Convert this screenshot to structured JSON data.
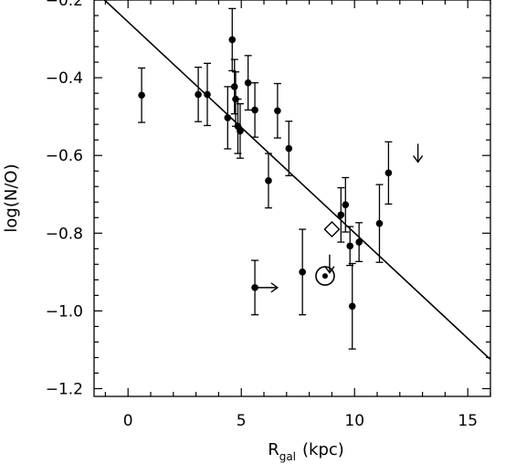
{
  "chart_data": {
    "type": "scatter",
    "title": "",
    "xlabel": {
      "main": "R",
      "sub": "gal",
      "unit": "(kpc)"
    },
    "ylabel": "log(N/O)",
    "xlim": [
      -1.5,
      16
    ],
    "ylim": [
      -1.22,
      -0.2
    ],
    "x_ticks": [
      0,
      5,
      10,
      15
    ],
    "x_tick_labels": [
      "0",
      "5",
      "10",
      "15"
    ],
    "y_ticks": [
      -1.2,
      -1.0,
      -0.8,
      -0.6,
      -0.4,
      -0.2
    ],
    "y_tick_labels": [
      "−1.2",
      "−1.0",
      "−0.8",
      "−0.6",
      "−0.4",
      "−0.2"
    ],
    "grid": false,
    "legend": "none",
    "points": [
      {
        "x": 0.6,
        "y": -0.445,
        "err_lo": 0.07,
        "err_hi": 0.07
      },
      {
        "x": 3.1,
        "y": -0.443,
        "err_lo": 0.07,
        "err_hi": 0.07
      },
      {
        "x": 3.5,
        "y": -0.443,
        "err_lo": 0.08,
        "err_hi": 0.08
      },
      {
        "x": 4.4,
        "y": -0.503,
        "err_lo": 0.08,
        "err_hi": 0.08
      },
      {
        "x": 4.6,
        "y": -0.302,
        "err_lo": 0.08,
        "err_hi": 0.08
      },
      {
        "x": 4.7,
        "y": -0.423,
        "err_lo": 0.07,
        "err_hi": 0.07
      },
      {
        "x": 4.75,
        "y": -0.455,
        "err_lo": 0.07,
        "err_hi": 0.07
      },
      {
        "x": 4.85,
        "y": -0.525,
        "err_lo": 0.07,
        "err_hi": 0.07
      },
      {
        "x": 4.95,
        "y": -0.537,
        "err_lo": 0.07,
        "err_hi": 0.07
      },
      {
        "x": 5.3,
        "y": -0.413,
        "err_lo": 0.07,
        "err_hi": 0.07
      },
      {
        "x": 5.6,
        "y": -0.483,
        "err_lo": 0.07,
        "err_hi": 0.07
      },
      {
        "x": 6.2,
        "y": -0.665,
        "err_lo": 0.07,
        "err_hi": 0.07
      },
      {
        "x": 6.6,
        "y": -0.485,
        "err_lo": 0.07,
        "err_hi": 0.07
      },
      {
        "x": 7.1,
        "y": -0.582,
        "err_lo": 0.07,
        "err_hi": 0.07
      },
      {
        "x": 5.6,
        "y": -0.94,
        "err_lo": 0.07,
        "err_hi": 0.07
      },
      {
        "x": 7.7,
        "y": -0.9,
        "err_lo": 0.11,
        "err_hi": 0.11
      },
      {
        "x": 9.4,
        "y": -0.753,
        "err_lo": 0.07,
        "err_hi": 0.07
      },
      {
        "x": 9.6,
        "y": -0.727,
        "err_lo": 0.07,
        "err_hi": 0.07
      },
      {
        "x": 9.8,
        "y": -0.833,
        "err_lo": 0.05,
        "err_hi": 0.05
      },
      {
        "x": 9.9,
        "y": -0.988,
        "err_lo": 0.11,
        "err_hi": 0.11
      },
      {
        "x": 10.2,
        "y": -0.823,
        "err_lo": 0.05,
        "err_hi": 0.05
      },
      {
        "x": 11.1,
        "y": -0.775,
        "err_lo": 0.1,
        "err_hi": 0.1
      },
      {
        "x": 11.5,
        "y": -0.645,
        "err_lo": 0.08,
        "err_hi": 0.08
      }
    ],
    "fit_line": {
      "x": [
        -1.5,
        16
      ],
      "y": [
        -0.175,
        -1.125
      ]
    },
    "upper_limits": [
      {
        "x": 12.8,
        "y": -0.57
      },
      {
        "x": 8.9,
        "y": -0.855
      }
    ],
    "lower_limits_x": [
      {
        "x": 5.6,
        "y": -0.94,
        "dx": 1.0
      }
    ],
    "diamond": {
      "x": 9.0,
      "y": -0.79
    },
    "sun": {
      "x": 8.7,
      "y": -0.91
    }
  }
}
